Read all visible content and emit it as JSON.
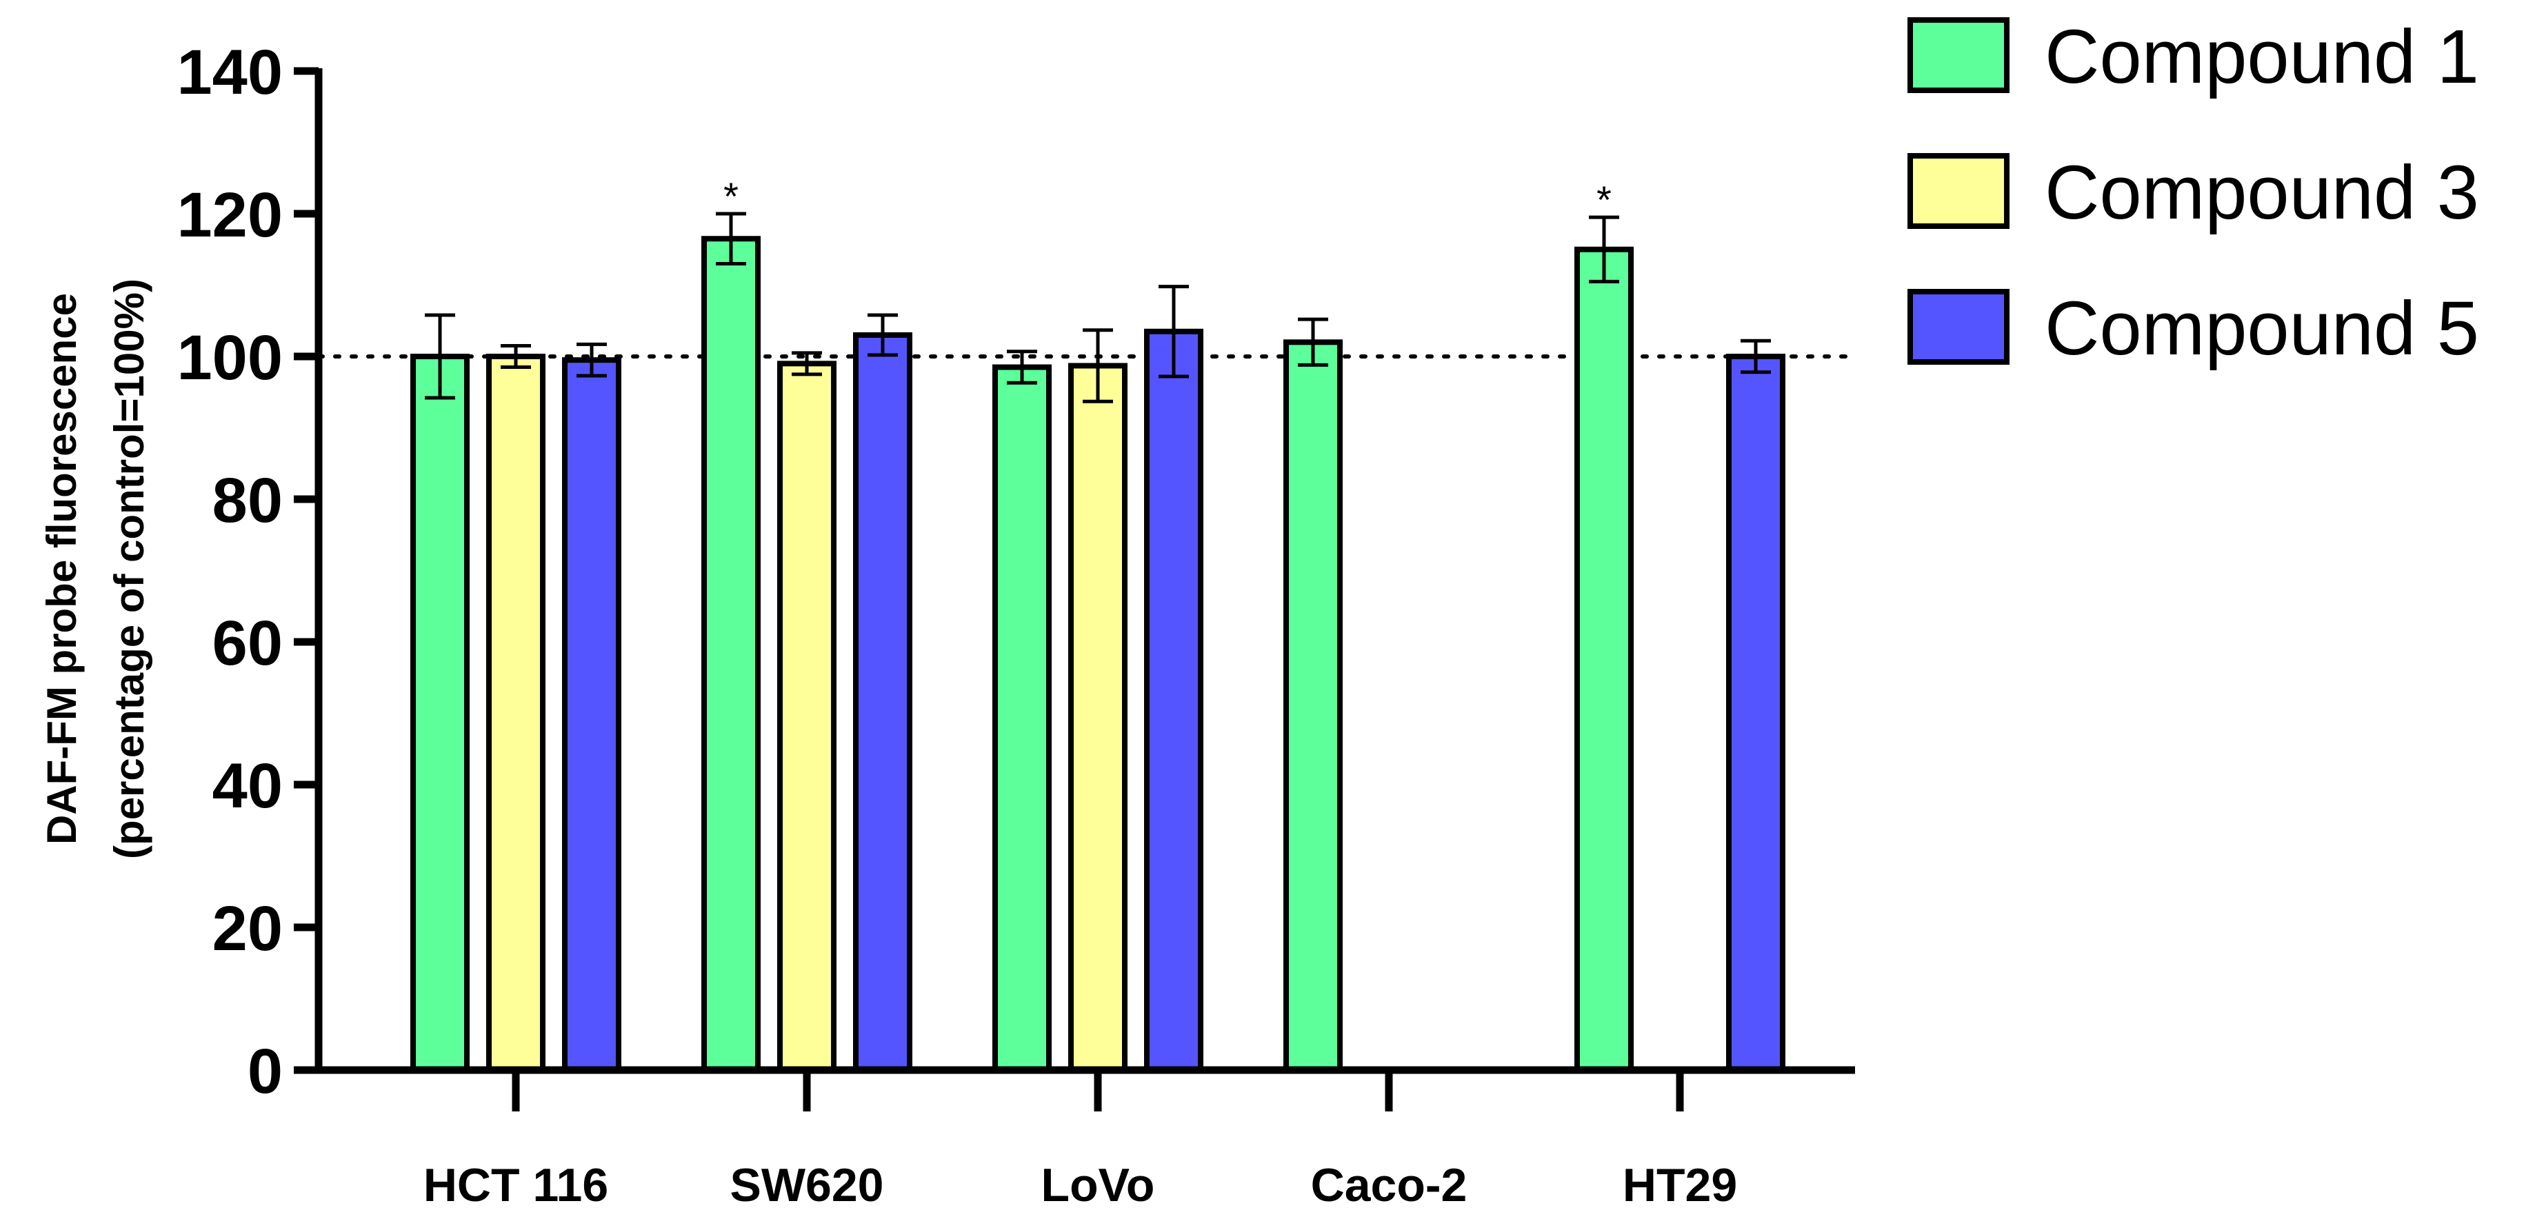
{
  "chart_data": {
    "type": "bar",
    "title": "",
    "xlabel": "",
    "ylabel_lines": [
      "DAF-FM probe fluorescence",
      "(percentage of control=100%)"
    ],
    "ylim": [
      0,
      140
    ],
    "yticks": [
      0,
      20,
      40,
      60,
      80,
      100,
      120,
      140
    ],
    "reference_line": 100,
    "categories": [
      "HCT 116",
      "SW620",
      "LoVo",
      "Caco-2",
      "HT29"
    ],
    "series": [
      {
        "name": "Compound 1",
        "color": "#5cff9a",
        "values": [
          100,
          116.5,
          98.5,
          102,
          115
        ],
        "errors": [
          5.8,
          3.5,
          2.2,
          3.2,
          4.5
        ],
        "significance": [
          "",
          "*",
          "",
          "",
          "*"
        ]
      },
      {
        "name": "Compound 3",
        "color": "#ffff99",
        "values": [
          100,
          99,
          98.7,
          null,
          null
        ],
        "errors": [
          1.5,
          1.5,
          5,
          null,
          null
        ],
        "significance": [
          "",
          "",
          "",
          "",
          ""
        ]
      },
      {
        "name": "Compound 5",
        "color": "#5555ff",
        "values": [
          99.5,
          103,
          103.5,
          null,
          100
        ],
        "errors": [
          2.2,
          2.8,
          6.3,
          null,
          2.2
        ],
        "significance": [
          "",
          "",
          "",
          "",
          ""
        ]
      }
    ],
    "legend_position": "top-right"
  }
}
